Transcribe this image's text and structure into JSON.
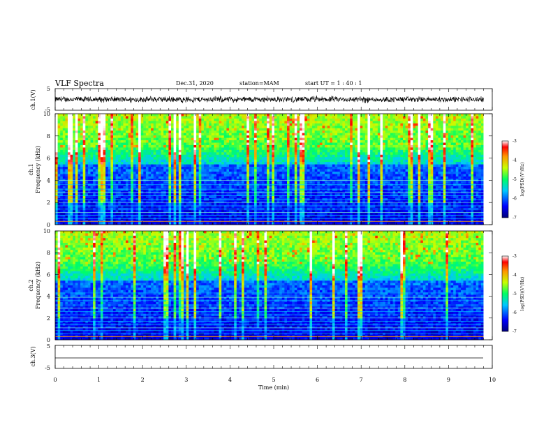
{
  "header": {
    "title": "VLF Spectra",
    "date": "Dec.31, 2020",
    "station": "station=MAM",
    "start": "start  UT  =   1  : 40 : 1"
  },
  "chart_data": [
    {
      "type": "line",
      "name": "ch1-waveform",
      "ylabel": "ch.1(V)",
      "ylim": [
        -5,
        5
      ],
      "yticks": [
        "5",
        "-5"
      ],
      "description_values": {
        "amplitude_range_V": [
          -1.5,
          1.5
        ]
      }
    },
    {
      "type": "heatmap",
      "name": "ch1-spectrogram",
      "ylabel_line1": "ch.1",
      "ylabel_line2": "Frequency (kHz)",
      "ylim": [
        0,
        10
      ],
      "yticks": [
        "0",
        "2",
        "4",
        "6",
        "8",
        "10"
      ],
      "xlim": [
        0,
        9.8
      ],
      "colorbar": {
        "label": "log(PSD)(V²/Hz)",
        "range": [
          -7,
          -3
        ],
        "ticks": [
          "-3",
          "-4",
          "-5",
          "-6",
          "-7"
        ]
      },
      "hum_lines_kHz": [
        0.3,
        0.55,
        0.85,
        1.1,
        1.4,
        1.7,
        2.0,
        2.3,
        2.6,
        2.9,
        3.2,
        3.6,
        4.0
      ]
    },
    {
      "type": "heatmap",
      "name": "ch2-spectrogram",
      "ylabel_line1": "ch.2",
      "ylabel_line2": "Frequency (kHz)",
      "ylim": [
        0,
        10
      ],
      "yticks": [
        "0",
        "2",
        "4",
        "6",
        "8",
        "10"
      ],
      "xlim": [
        0,
        9.8
      ],
      "colorbar": {
        "label": "log(PSD)(V²/Hz)",
        "range": [
          -7,
          -3
        ],
        "ticks": [
          "-3",
          "-4",
          "-5",
          "-6",
          "-7"
        ]
      },
      "hum_lines_kHz": [
        0.3,
        0.55,
        0.85,
        1.1,
        1.4,
        1.7,
        2.0,
        2.3,
        2.6,
        2.9,
        3.2,
        3.6,
        3.9,
        4.3
      ]
    },
    {
      "type": "line",
      "name": "ch3-waveform",
      "ylabel": "ch.3(V)",
      "ylim": [
        -5,
        5
      ],
      "yticks": [
        "5",
        "-5"
      ],
      "flat_value_V": -1.5
    }
  ],
  "xaxis": {
    "label": "Time (min)",
    "range": [
      0,
      10
    ],
    "ticks": [
      "0",
      "1",
      "2",
      "3",
      "4",
      "5",
      "6",
      "7",
      "8",
      "9",
      "10"
    ]
  }
}
